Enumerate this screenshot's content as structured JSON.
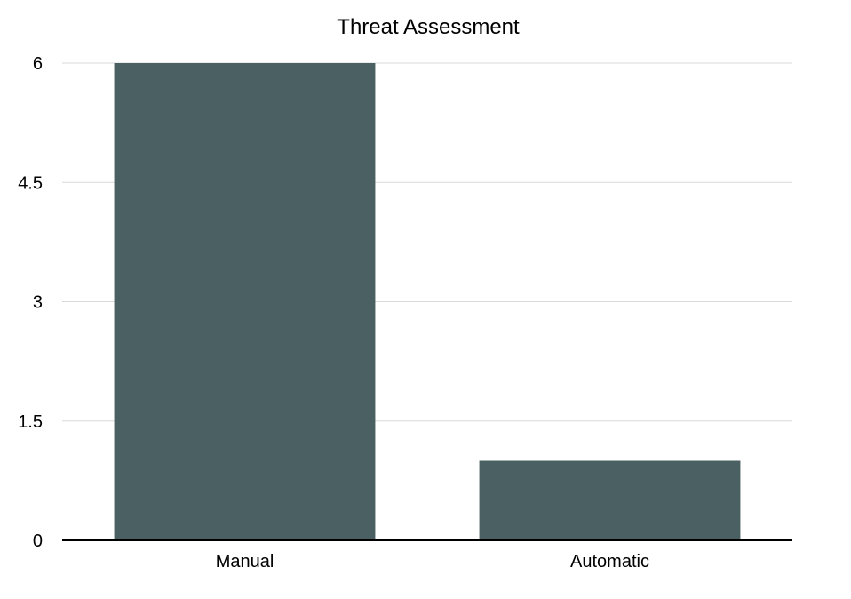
{
  "chart_data": {
    "type": "bar",
    "title": "Threat Assessment",
    "xlabel": "",
    "ylabel": "",
    "categories": [
      "Manual",
      "Automatic"
    ],
    "values": [
      6,
      1
    ],
    "ylim": [
      0,
      6
    ],
    "yticks": [
      0,
      1.5,
      3,
      4.5,
      6
    ],
    "ytick_labels": [
      "0",
      "1.5",
      "3",
      "4.5",
      "6"
    ],
    "grid": true,
    "legend": "none",
    "colors": {
      "bar": "#4b6063",
      "grid": "#d9d9d9",
      "axis": "#000000"
    }
  }
}
